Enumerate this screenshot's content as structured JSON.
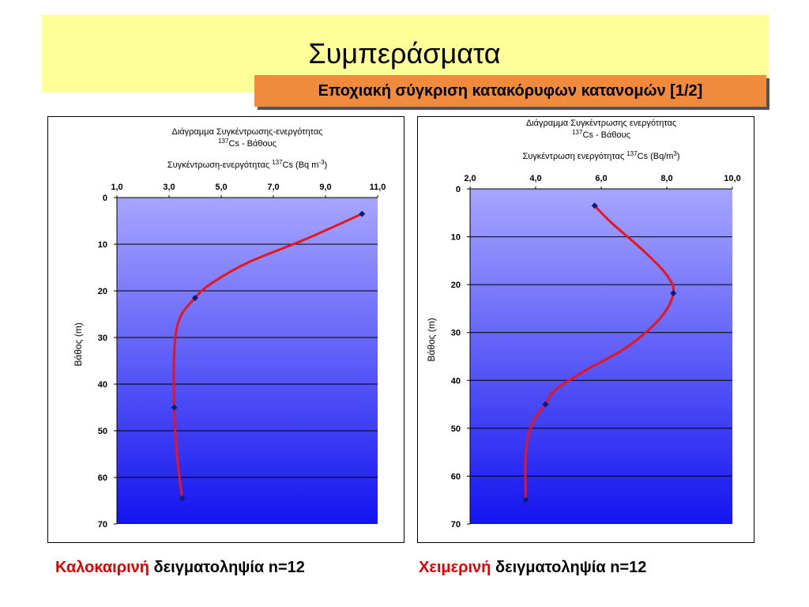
{
  "slide": {
    "title": "Συμπεράσματα",
    "subtitle": "Εποχιακή σύγκριση κατακόρυφων κατανομών [1/2]"
  },
  "captions": {
    "left": {
      "season": "Καλοκαιρινή",
      "rest": "δειγματοληψία n=12"
    },
    "right": {
      "season": "Χειμερινή",
      "rest": "δειγματοληψία  n=12"
    }
  },
  "colors": {
    "title_band": "#ffff99",
    "subtitle_box": "#f08a3c",
    "caption_accent": "#e00000",
    "curve": "#e8141e",
    "marker": "#0a1e78",
    "plot_top": "#a6a6ff",
    "plot_bottom": "#1414f0"
  },
  "chart_data": [
    {
      "type": "scatter",
      "title_line1": "Διάγραμμα Συγκέντρωσης-ενεργότητας",
      "title_line2_sup": "137",
      "title_line2": "Cs - Βάθους",
      "xlabel": "Συγκέντρωση-ενεργότητας ",
      "xlabel_sup": "137",
      "xlabel_mid": "Cs (Bq m",
      "xlabel_sup2": "-3",
      "xlabel_end": ")",
      "ylabel": "Βάθος (m)",
      "x_axis_position": "top",
      "y_inverted": true,
      "xlim": [
        1.0,
        11.0
      ],
      "ylim": [
        0,
        70
      ],
      "xticks": [
        "1,0",
        "3,0",
        "5,0",
        "7,0",
        "9,0",
        "11,0"
      ],
      "xtick_values": [
        1,
        3,
        5,
        7,
        9,
        11
      ],
      "yticks": [
        "0",
        "10",
        "20",
        "30",
        "40",
        "50",
        "60",
        "70"
      ],
      "ytick_values": [
        0,
        10,
        20,
        30,
        40,
        50,
        60,
        70
      ],
      "grid": "horizontal",
      "points": [
        {
          "x": 10.4,
          "y": 3.5
        },
        {
          "x": 4.0,
          "y": 21.5
        },
        {
          "x": 3.2,
          "y": 45
        },
        {
          "x": 3.5,
          "y": 64.5
        }
      ],
      "curve": [
        {
          "x": 10.4,
          "y": 3.5
        },
        {
          "x": 8.2,
          "y": 9
        },
        {
          "x": 6.0,
          "y": 14
        },
        {
          "x": 4.6,
          "y": 18.5
        },
        {
          "x": 4.0,
          "y": 21.5
        },
        {
          "x": 3.4,
          "y": 26
        },
        {
          "x": 3.2,
          "y": 33
        },
        {
          "x": 3.2,
          "y": 45
        },
        {
          "x": 3.3,
          "y": 55
        },
        {
          "x": 3.5,
          "y": 64.5
        }
      ]
    },
    {
      "type": "scatter",
      "title_line1": "Διάγραμμα Συγκέντρωσης ενεργότητας",
      "title_line2_sup": "137",
      "title_line2": "Cs  -  Βάθους",
      "xlabel": "Συγκέντρωση ενεργότητας ",
      "xlabel_sup": "137",
      "xlabel_mid": "Cs (Bq/m",
      "xlabel_sup2": "3",
      "xlabel_end": ")",
      "ylabel": "Βάθος (m)",
      "x_axis_position": "top",
      "y_inverted": true,
      "xlim": [
        2.0,
        10.0
      ],
      "ylim": [
        0,
        70
      ],
      "xticks": [
        "2,0",
        "4,0",
        "6,0",
        "8,0",
        "10,0"
      ],
      "xtick_values": [
        2,
        4,
        6,
        8,
        10
      ],
      "yticks": [
        "0",
        "10",
        "20",
        "30",
        "40",
        "50",
        "60",
        "70"
      ],
      "ytick_values": [
        0,
        10,
        20,
        30,
        40,
        50,
        60,
        70
      ],
      "grid": "horizontal",
      "points": [
        {
          "x": 5.8,
          "y": 3.5
        },
        {
          "x": 8.2,
          "y": 21.8
        },
        {
          "x": 4.3,
          "y": 45
        },
        {
          "x": 3.7,
          "y": 65
        }
      ],
      "curve": [
        {
          "x": 5.8,
          "y": 3.5
        },
        {
          "x": 6.3,
          "y": 7
        },
        {
          "x": 7.3,
          "y": 13
        },
        {
          "x": 8.0,
          "y": 18
        },
        {
          "x": 8.2,
          "y": 21.8
        },
        {
          "x": 7.8,
          "y": 27
        },
        {
          "x": 6.8,
          "y": 33
        },
        {
          "x": 5.5,
          "y": 38
        },
        {
          "x": 4.6,
          "y": 42
        },
        {
          "x": 4.3,
          "y": 45
        },
        {
          "x": 3.9,
          "y": 49
        },
        {
          "x": 3.7,
          "y": 55
        },
        {
          "x": 3.7,
          "y": 65
        }
      ]
    }
  ]
}
